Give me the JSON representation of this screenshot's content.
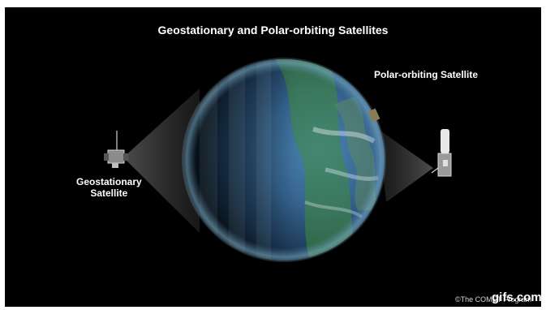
{
  "title": "Geostationary and Polar-orbiting Satellites",
  "labels": {
    "polar": "Polar-orbiting Satellite",
    "geo_line1": "Geostationary",
    "geo_line2": "Satellite"
  },
  "credit": "©The COMET Program",
  "watermark": "gifs.com",
  "colors": {
    "background": "#000000",
    "ocean": "#3d6f9e",
    "vegetation": "#3f8a3a",
    "text": "#ffffff"
  }
}
